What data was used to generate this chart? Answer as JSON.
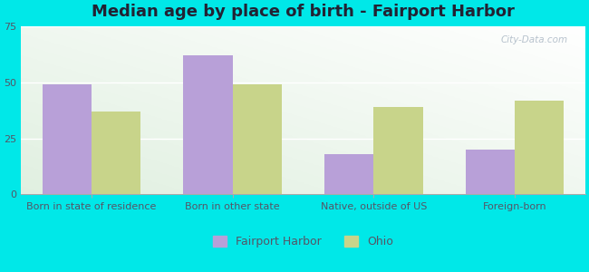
{
  "title": "Median age by place of birth - Fairport Harbor",
  "categories": [
    "Born in state of residence",
    "Born in other state",
    "Native, outside of US",
    "Foreign-born"
  ],
  "fairport_values": [
    49,
    62,
    18,
    20
  ],
  "ohio_values": [
    37,
    49,
    39,
    42
  ],
  "fairport_color": "#b8a0d8",
  "ohio_color": "#c8d48a",
  "ylim": [
    0,
    75
  ],
  "yticks": [
    0,
    25,
    50,
    75
  ],
  "legend_labels": [
    "Fairport Harbor",
    "Ohio"
  ],
  "bar_width": 0.35,
  "outer_color": "#00e8e8",
  "title_fontsize": 13,
  "tick_fontsize": 8,
  "legend_fontsize": 9,
  "watermark": "City-Data.com",
  "grid_color": "#d8e8d8",
  "bg_color_topleft": "#e0f0e0",
  "bg_color_topright": "#f5faf5",
  "bg_color_bottom": "#d0e8d0"
}
